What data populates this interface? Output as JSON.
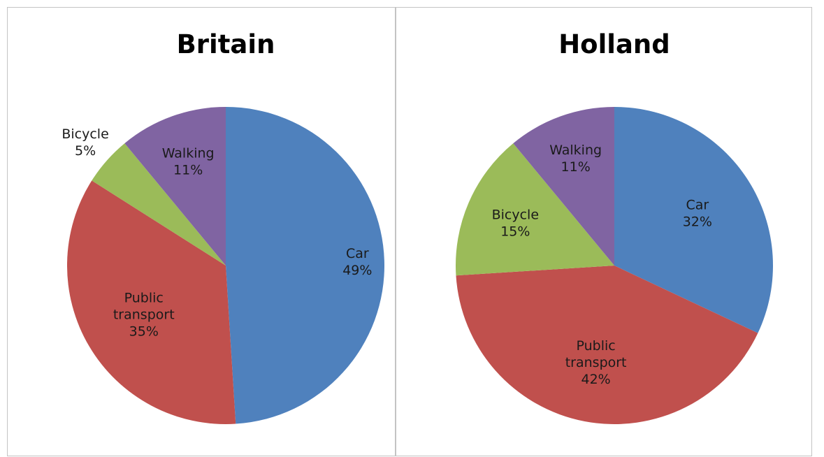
{
  "chart_data": [
    {
      "type": "pie",
      "title": "Britain",
      "series": [
        {
          "label": "Car",
          "value": 49,
          "value_label": "49%",
          "color": "#4F81BD"
        },
        {
          "label": "Public transport",
          "value": 35,
          "value_label": "35%",
          "color": "#C0504D"
        },
        {
          "label": "Bicycle",
          "value": 5,
          "value_label": "5%",
          "color": "#9BBB59"
        },
        {
          "label": "Walking",
          "value": 11,
          "value_label": "11%",
          "color": "#8064A2"
        }
      ],
      "start_angle": "12 o'clock",
      "direction": "clockwise",
      "legend": "none (labels on/next to slices)"
    },
    {
      "type": "pie",
      "title": "Holland",
      "series": [
        {
          "label": "Car",
          "value": 32,
          "value_label": "32%",
          "color": "#4F81BD"
        },
        {
          "label": "Public transport",
          "value": 42,
          "value_label": "42%",
          "color": "#C0504D"
        },
        {
          "label": "Bicycle",
          "value": 15,
          "value_label": "15%",
          "color": "#9BBB59"
        },
        {
          "label": "Walking",
          "value": 11,
          "value_label": "11%",
          "color": "#8064A2"
        }
      ],
      "start_angle": "12 o'clock",
      "direction": "clockwise",
      "legend": "none (labels on/next to slices)"
    }
  ]
}
